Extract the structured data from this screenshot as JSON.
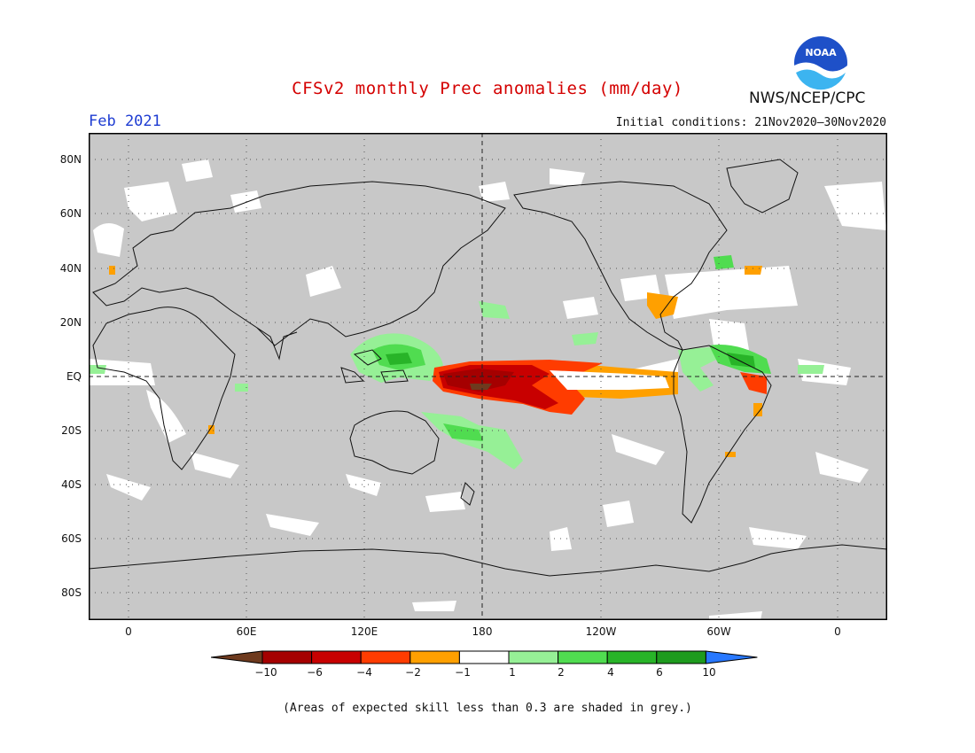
{
  "header": {
    "title": "CFSv2 monthly Prec anomalies (mm/day)",
    "month": "Feb 2021",
    "initial_conditions": "Initial conditions: 21Nov2020–30Nov2020",
    "org": "NWS/NCEP/CPC",
    "logo_text": "NOAA"
  },
  "map": {
    "lat_labels": [
      "80N",
      "60N",
      "40N",
      "20N",
      "EQ",
      "20S",
      "40S",
      "60S",
      "80S"
    ],
    "lon_labels": [
      "0",
      "60E",
      "120E",
      "180",
      "120W",
      "60W",
      "0"
    ],
    "background_color": "#c8c8c8"
  },
  "colorbar": {
    "labels": [
      "−10",
      "−6",
      "−4",
      "−2",
      "−1",
      "1",
      "2",
      "4",
      "6",
      "10"
    ],
    "colors": [
      "#6e3a1e",
      "#a50000",
      "#c80000",
      "#ff3c00",
      "#ffa000",
      "#ffffff",
      "#96f096",
      "#50dc50",
      "#28b428",
      "#1e9b1e",
      "#2878ff"
    ]
  },
  "footnote": "(Areas of expected skill less than 0.3 are shaded in grey.)"
}
